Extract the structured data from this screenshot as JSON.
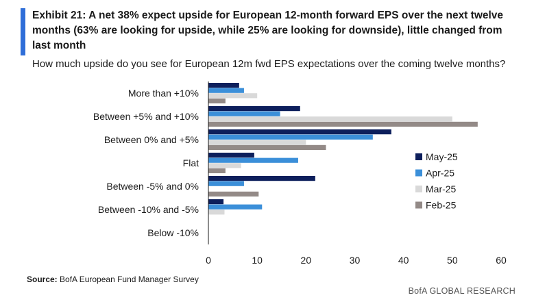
{
  "header": {
    "title": "Exhibit 21: A net 38% expect upside for European 12-month forward EPS over the next twelve months (63% are looking for upside, while 25% are looking for downside), little changed from last month",
    "subtitle": "How much upside do you see for European 12m fwd EPS expectations over the coming twelve months?"
  },
  "footer": {
    "source_label": "Source:",
    "source_text": " BofA European Fund Manager Survey",
    "brand": "BofA GLOBAL RESEARCH"
  },
  "colors": {
    "accent": "#2f6ed8",
    "May-25": "#0d1f5c",
    "Apr-25": "#3b8fd9",
    "Mar-25": "#d9d9d9",
    "Feb-25": "#938a87"
  },
  "chart_data": {
    "type": "bar",
    "orientation": "horizontal",
    "title": "How much upside do you see for European 12m fwd EPS expectations over the coming twelve months?",
    "categories": [
      "More than +10%",
      "Between +5% and +10%",
      "Between 0% and +5%",
      "Flat",
      "Between -5% and 0%",
      "Between -10% and -5%",
      "Below -10%"
    ],
    "series": [
      {
        "name": "May-25",
        "values": [
          6.3,
          18.8,
          37.5,
          9.4,
          21.9,
          3.1,
          0
        ]
      },
      {
        "name": "Apr-25",
        "values": [
          7.3,
          14.7,
          33.7,
          18.4,
          7.3,
          11.0,
          0
        ]
      },
      {
        "name": "Mar-25",
        "values": [
          10.0,
          50.0,
          20.0,
          6.7,
          0,
          3.3,
          0
        ]
      },
      {
        "name": "Feb-25",
        "values": [
          3.5,
          55.2,
          24.1,
          3.5,
          10.3,
          0,
          0
        ]
      }
    ],
    "xlim": [
      0,
      60
    ],
    "xticks": [
      0,
      10,
      20,
      30,
      40,
      50,
      60
    ],
    "legend": [
      "May-25",
      "Apr-25",
      "Mar-25",
      "Feb-25"
    ],
    "legend_position": "right",
    "grid": false
  }
}
